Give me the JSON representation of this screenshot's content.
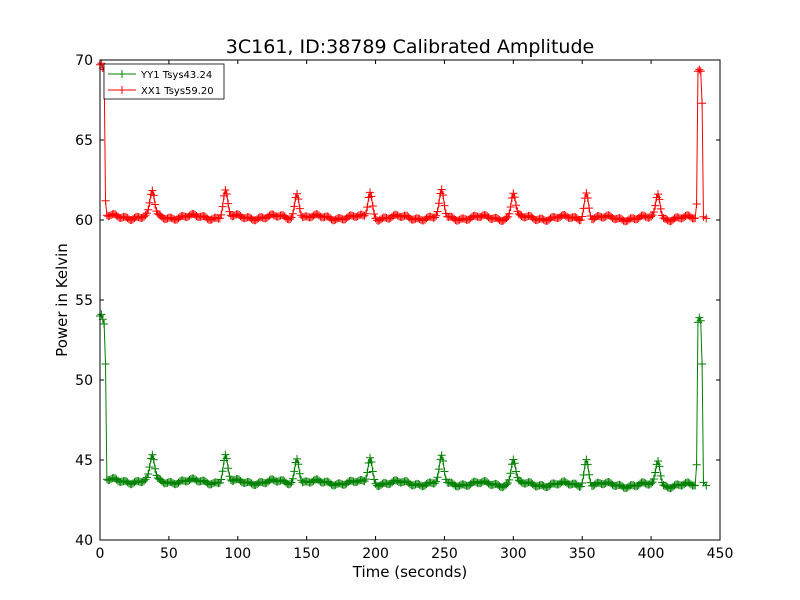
{
  "chart_data": {
    "type": "line",
    "title": "3C161, ID:38789 Calibrated Amplitude",
    "xlabel": "Time (seconds)",
    "ylabel": "Power in Kelvin",
    "xlim": [
      0,
      450
    ],
    "ylim": [
      40,
      70
    ],
    "xticks": [
      "0",
      "50",
      "100",
      "150",
      "200",
      "250",
      "300",
      "350",
      "400",
      "450"
    ],
    "yticks": [
      "40",
      "45",
      "50",
      "55",
      "60",
      "65",
      "70"
    ],
    "legend_position": "top-left",
    "marker": "+",
    "series": [
      {
        "name": "YY1 Tsys43.24",
        "color": "#008000",
        "baseline": 43.7,
        "baseline_end": 43.4,
        "peak_height": 45.3,
        "peak_times": [
          38,
          91,
          143,
          196,
          248,
          300,
          353,
          405
        ],
        "start_spike": [
          [
            0,
            54.0
          ],
          [
            1,
            54.1
          ],
          [
            2,
            53.8
          ],
          [
            3,
            53.5
          ],
          [
            4,
            51.0
          ],
          [
            5,
            43.8
          ]
        ],
        "end_spike": [
          [
            433,
            44.7
          ],
          [
            434,
            53.6
          ],
          [
            435,
            53.9
          ],
          [
            436,
            53.7
          ],
          [
            437,
            51.0
          ],
          [
            438,
            43.6
          ],
          [
            440,
            43.4
          ]
        ],
        "x_end": 440
      },
      {
        "name": "XX1 Tsys59.20",
        "color": "#ff0000",
        "baseline": 60.2,
        "baseline_end": 60.1,
        "peak_height": 61.8,
        "peak_times": [
          38,
          91,
          143,
          196,
          248,
          300,
          353,
          405
        ],
        "start_spike": [
          [
            0,
            69.7
          ],
          [
            1,
            69.8
          ],
          [
            2,
            69.5
          ],
          [
            3,
            69.4
          ],
          [
            4,
            61.2
          ],
          [
            5,
            60.3
          ]
        ],
        "end_spike": [
          [
            433,
            61.0
          ],
          [
            434,
            69.3
          ],
          [
            435,
            69.4
          ],
          [
            436,
            69.3
          ],
          [
            437,
            67.3
          ],
          [
            438,
            60.2
          ],
          [
            440,
            60.1
          ]
        ],
        "x_end": 440
      }
    ]
  }
}
